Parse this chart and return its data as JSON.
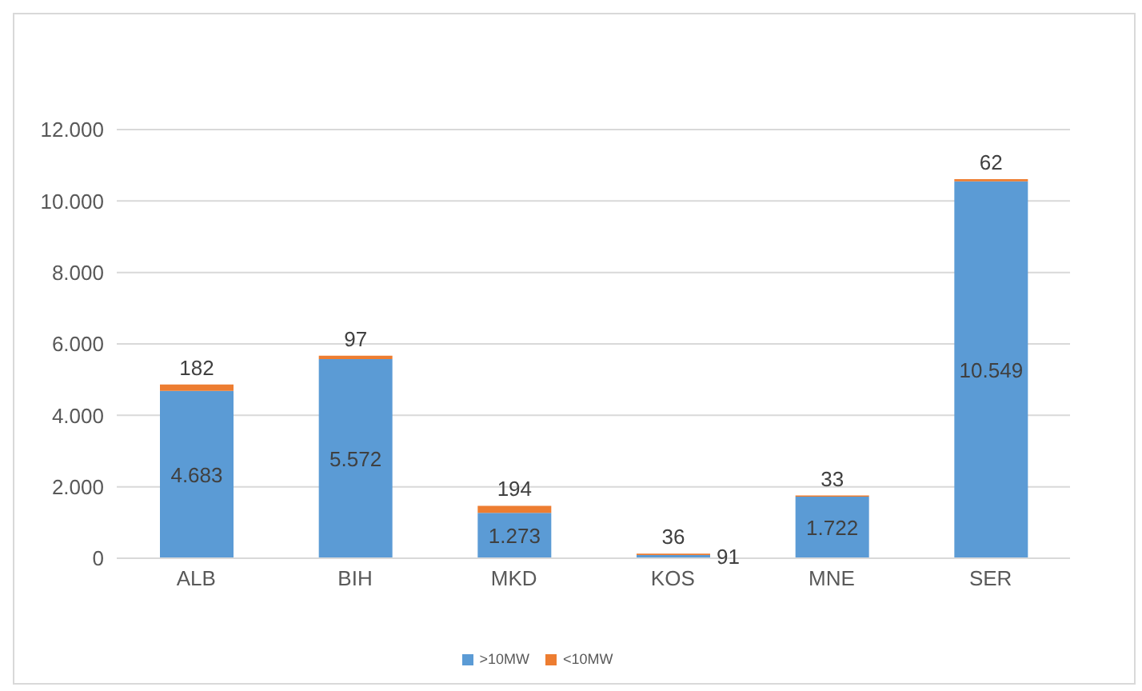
{
  "chart_data": {
    "type": "bar",
    "stacked": true,
    "categories": [
      "ALB",
      "BIH",
      "MKD",
      "KOS",
      "MNE",
      "SER"
    ],
    "series": [
      {
        "name": ">10MW",
        "color": "#5b9bd5",
        "values": [
          4683,
          5572,
          1273,
          91,
          1722,
          10549
        ],
        "value_labels": [
          "4.683",
          "5.572",
          "1.273",
          "91",
          "1.722",
          "10.549"
        ]
      },
      {
        "name": "<10MW",
        "color": "#ed7d31",
        "values": [
          182,
          97,
          194,
          36,
          33,
          62
        ],
        "value_labels": [
          "182",
          "97",
          "194",
          "36",
          "33",
          "62"
        ]
      }
    ],
    "ylim": [
      0,
      12000
    ],
    "yticks": [
      {
        "value": 0,
        "label": "0"
      },
      {
        "value": 2000,
        "label": "2.000"
      },
      {
        "value": 4000,
        "label": "4.000"
      },
      {
        "value": 6000,
        "label": "6.000"
      },
      {
        "value": 8000,
        "label": "8.000"
      },
      {
        "value": 10000,
        "label": "10.000"
      },
      {
        "value": 12000,
        "label": "12.000"
      }
    ],
    "grid": "y",
    "legend": "bottom"
  }
}
